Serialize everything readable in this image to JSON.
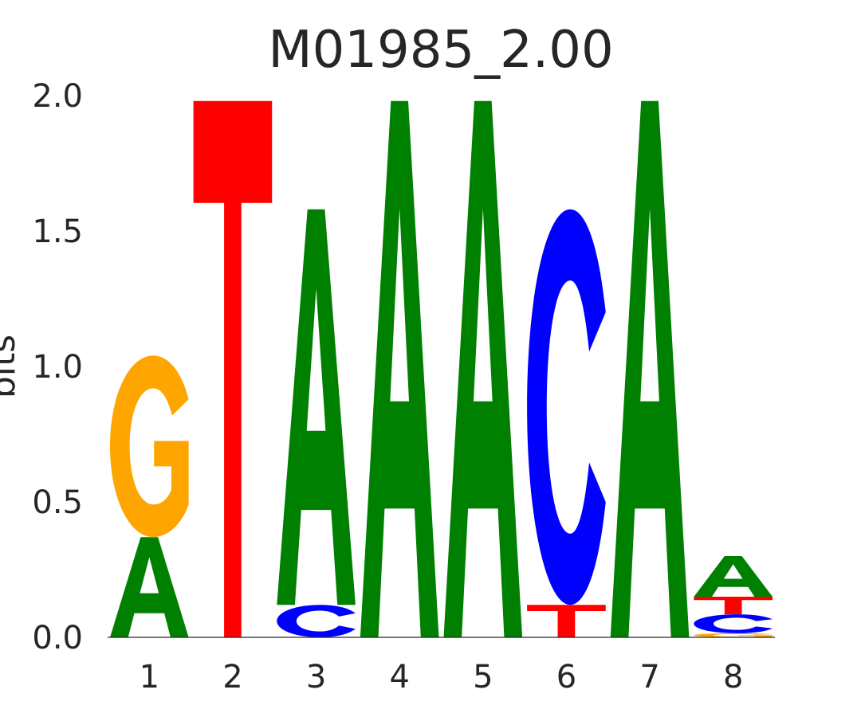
{
  "chart_data": {
    "type": "sequence-logo",
    "title": "M01985_2.00",
    "ylabel": "bits",
    "ylim": [
      0,
      2
    ],
    "yticks": [
      "0.0",
      "0.5",
      "1.0",
      "1.5",
      "2.0"
    ],
    "positions": [
      "1",
      "2",
      "3",
      "4",
      "5",
      "6",
      "7",
      "8"
    ],
    "colors": {
      "A": "#008000",
      "C": "#0000ff",
      "G": "#ffa500",
      "T": "#ff0000"
    },
    "stacks": [
      [
        {
          "letter": "A",
          "bits": 0.37
        },
        {
          "letter": "G",
          "bits": 0.67
        }
      ],
      [
        {
          "letter": "T",
          "bits": 1.98
        }
      ],
      [
        {
          "letter": "C",
          "bits": 0.12
        },
        {
          "letter": "A",
          "bits": 1.46
        }
      ],
      [
        {
          "letter": "A",
          "bits": 1.98
        }
      ],
      [
        {
          "letter": "A",
          "bits": 1.98
        }
      ],
      [
        {
          "letter": "T",
          "bits": 0.12
        },
        {
          "letter": "C",
          "bits": 1.46
        }
      ],
      [
        {
          "letter": "A",
          "bits": 1.98
        }
      ],
      [
        {
          "letter": "G",
          "bits": 0.015
        },
        {
          "letter": "C",
          "bits": 0.07
        },
        {
          "letter": "T",
          "bits": 0.065
        },
        {
          "letter": "A",
          "bits": 0.15
        }
      ]
    ]
  }
}
